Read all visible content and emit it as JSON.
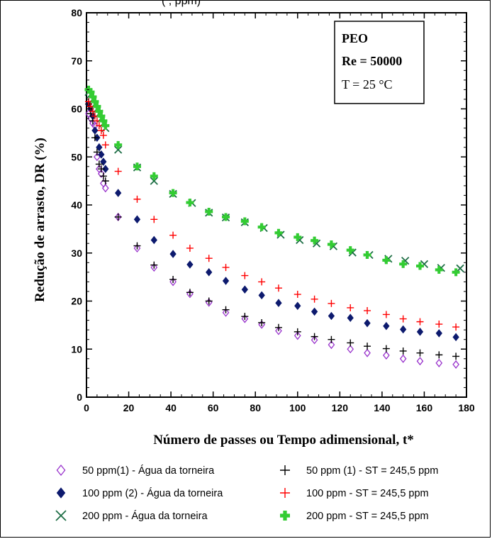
{
  "chart_data": {
    "type": "scatter",
    "title_fragment": "(                , ppm)",
    "xlabel": "Número de passes ou Tempo adimensional, t*",
    "ylabel": "Redução de arrasto, DR (%)",
    "xlim": [
      0,
      180
    ],
    "ylim": [
      0,
      80
    ],
    "xticks": [
      0,
      20,
      40,
      60,
      80,
      100,
      120,
      140,
      160,
      180
    ],
    "yticks": [
      0,
      10,
      20,
      30,
      40,
      50,
      60,
      70,
      80
    ],
    "grid": false,
    "annotation": {
      "line1": "PEO",
      "line2": "Re = 50000",
      "line3": "T = 25 °C"
    },
    "legend_position": "bottom",
    "series": [
      {
        "name": "50 ppm(1) - Água da torneira",
        "marker": "diamond-open",
        "color": "#9933cc",
        "x": [
          1,
          2,
          3,
          4,
          5,
          6,
          7,
          8,
          9,
          15,
          24,
          32,
          41,
          49,
          58,
          66,
          75,
          83,
          91,
          100,
          108,
          116,
          125,
          133,
          142,
          150,
          158,
          167,
          175
        ],
        "y": [
          59,
          58,
          57,
          56.5,
          50,
          47.5,
          46.5,
          44.5,
          43.5,
          37.5,
          31,
          27,
          24,
          21.5,
          19.7,
          17.6,
          16.3,
          15.1,
          13.8,
          12.8,
          11.9,
          10.9,
          10,
          9.2,
          8.7,
          8,
          7.5,
          7.1,
          6.8
        ]
      },
      {
        "name": "100 ppm (2) - Água da torneira",
        "marker": "diamond-filled",
        "color": "#0d1a6e",
        "x": [
          1,
          2,
          3,
          4,
          5,
          6,
          7,
          8,
          9,
          15,
          24,
          32,
          41,
          49,
          58,
          66,
          75,
          83,
          91,
          100,
          108,
          116,
          125,
          133,
          142,
          150,
          158,
          167,
          175
        ],
        "y": [
          61,
          60,
          58.5,
          55.5,
          54,
          52,
          50.5,
          49,
          47.5,
          42.5,
          37,
          32.7,
          29.8,
          27.6,
          26,
          24.2,
          22.4,
          21.2,
          19.6,
          19,
          17.8,
          16.9,
          16.5,
          15.4,
          14.8,
          14.1,
          13.6,
          13.3,
          12.5
        ]
      },
      {
        "name": "200 ppm - Água da torneira",
        "marker": "x",
        "color": "#1e6e46",
        "x": [
          1,
          2,
          3,
          4,
          5,
          6,
          7,
          8,
          9,
          15,
          24,
          32,
          41,
          50,
          58,
          66,
          75,
          84,
          92,
          101,
          109,
          117,
          126,
          134,
          143,
          151,
          160,
          168,
          177
        ],
        "y": [
          63.5,
          63,
          62,
          61,
          60,
          59,
          58,
          57,
          56,
          51.5,
          47.8,
          45,
          42.3,
          40.4,
          38.4,
          37.4,
          36.4,
          35.2,
          33.8,
          32.7,
          32,
          31.4,
          30.1,
          29.6,
          28.8,
          28.4,
          27.7,
          26.9,
          26.8
        ]
      },
      {
        "name": "50 ppm (1) - ST = 245,5 ppm",
        "marker": "plus-thin",
        "color": "#000000",
        "x": [
          1,
          2,
          3,
          4,
          5,
          6,
          7,
          8,
          9,
          15,
          24,
          32,
          41,
          49,
          58,
          66,
          75,
          83,
          91,
          100,
          108,
          116,
          125,
          133,
          142,
          150,
          158,
          167,
          175
        ],
        "y": [
          61,
          59,
          57.5,
          54,
          51,
          48.5,
          47.5,
          46,
          45,
          37.5,
          31.5,
          27.5,
          24.5,
          21.8,
          20,
          18.2,
          16.8,
          15.5,
          14.5,
          13.6,
          12.6,
          12,
          11.3,
          10.6,
          10.1,
          9.6,
          9.2,
          8.8,
          8.5
        ]
      },
      {
        "name": "100 ppm - ST = 245,5 ppm",
        "marker": "plus-thin",
        "color": "#ff0000",
        "x": [
          1,
          2,
          3,
          4,
          5,
          6,
          7,
          8,
          9,
          15,
          24,
          32,
          41,
          49,
          58,
          66,
          75,
          83,
          91,
          100,
          108,
          116,
          125,
          133,
          142,
          150,
          158,
          167,
          175
        ],
        "y": [
          61.5,
          60.5,
          59.5,
          58.5,
          57.5,
          56.5,
          55.5,
          54.5,
          52.5,
          47,
          41.2,
          37,
          33.7,
          31,
          28.9,
          27,
          25.3,
          24,
          22.7,
          21.4,
          20.4,
          19.5,
          18.6,
          18,
          17.2,
          16.3,
          15.7,
          15.2,
          14.6
        ]
      },
      {
        "name": "200 ppm - ST = 245,5 ppm",
        "marker": "plus-thick",
        "color": "#33cc33",
        "x": [
          1,
          2,
          3,
          4,
          5,
          6,
          7,
          8,
          9,
          15,
          24,
          32,
          41,
          49,
          58,
          66,
          75,
          83,
          91,
          100,
          108,
          116,
          125,
          133,
          142,
          150,
          158,
          167,
          175
        ],
        "y": [
          64,
          63.5,
          62.5,
          61.5,
          60.5,
          59.5,
          58.5,
          57.5,
          56.5,
          52.5,
          48,
          46,
          42.5,
          40.5,
          38.6,
          37.5,
          36.6,
          35.4,
          34.2,
          33.3,
          32.6,
          31.8,
          30.6,
          29.6,
          28.5,
          27.7,
          27.3,
          26.5,
          26
        ]
      }
    ]
  }
}
